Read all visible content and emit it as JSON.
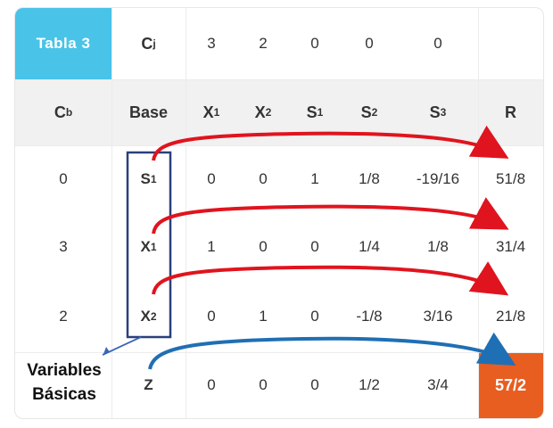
{
  "table": {
    "title": "Tabla 3",
    "cj_label": "C",
    "cj_sub": "j",
    "cj_values": [
      "3",
      "2",
      "0",
      "0",
      "0"
    ],
    "cb_label": "C",
    "cb_sub": "b",
    "base_label": "Base",
    "var_headers": [
      {
        "main": "X",
        "sub": "1"
      },
      {
        "main": "X",
        "sub": "2"
      },
      {
        "main": "S",
        "sub": "1"
      },
      {
        "main": "S",
        "sub": "2"
      },
      {
        "main": "S",
        "sub": "3"
      }
    ],
    "r_label": "R",
    "rows": [
      {
        "cb": "0",
        "base": "S",
        "base_sub": "1",
        "values": [
          "0",
          "0",
          "1",
          "1/8",
          "-19/16"
        ],
        "r": "51/8"
      },
      {
        "cb": "3",
        "base": "X",
        "base_sub": "1",
        "values": [
          "1",
          "0",
          "0",
          "1/4",
          "1/8"
        ],
        "r": "31/4"
      },
      {
        "cb": "2",
        "base": "X",
        "base_sub": "2",
        "values": [
          "0",
          "1",
          "0",
          "-1/8",
          "3/16"
        ],
        "r": "21/8"
      }
    ],
    "z_row": {
      "base": "Z",
      "values": [
        "0",
        "0",
        "0",
        "1/2",
        "3/4"
      ],
      "r": "57/2"
    }
  },
  "annotation": {
    "line1": "Variables",
    "line2": "Básicas"
  },
  "colors": {
    "title_bg": "#4ac3e8",
    "result_bg": "#e85d20",
    "arrow_red": "#e0141e",
    "arrow_blue": "#1f6fb4",
    "box_outline": "#2b3f7a"
  }
}
